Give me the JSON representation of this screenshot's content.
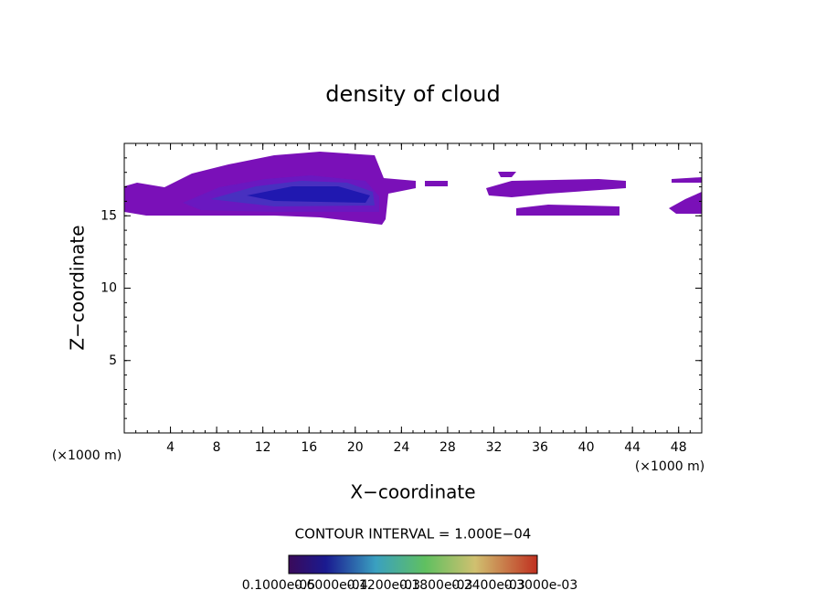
{
  "chart_data": {
    "type": "contour",
    "title": "density of cloud",
    "x_label": "X−coordinate",
    "y_label": "Z−coordinate",
    "x_unit_label": "(×1000 m)",
    "contour_interval": "CONTOUR INTERVAL = 1.000E−04",
    "xlim": [
      0,
      50
    ],
    "xticks": [
      4,
      8,
      12,
      16,
      20,
      24,
      28,
      32,
      36,
      40,
      44,
      48
    ],
    "ylim": [
      0,
      20
    ],
    "yticks": [
      5,
      10,
      15
    ],
    "colorbar_labels": [
      "0.1000e-05",
      "0.6000e-04",
      "0.1200e-03",
      "0.1800e-03",
      "0.2400e-03",
      "0.3000e-03"
    ]
  }
}
